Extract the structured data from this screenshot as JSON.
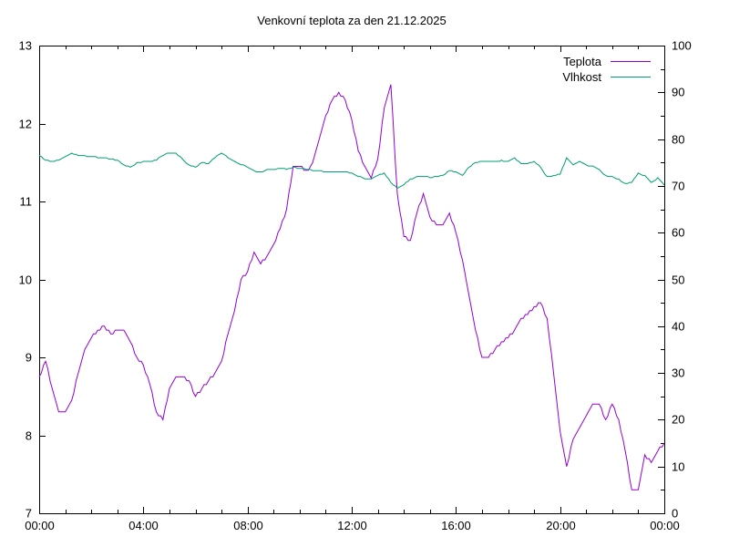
{
  "title": "Venkovní teplota za den 21.12.2025",
  "legend": {
    "position": "top-right-inside",
    "items": [
      {
        "label": "Teplota",
        "color": "#9400d3"
      },
      {
        "label": "Vlhkost",
        "color": "#009e73"
      }
    ]
  },
  "axes": {
    "x": {
      "tick_labels": [
        "00:00",
        "04:00",
        "08:00",
        "12:00",
        "16:00",
        "20:00",
        "00:00"
      ],
      "range_hours": [
        0,
        24
      ],
      "major_step_hours": 4,
      "minor_step_hours": 1
    },
    "y_left": {
      "tick_labels": [
        "7",
        "8",
        "9",
        "10",
        "11",
        "12",
        "13"
      ],
      "range": [
        7,
        13
      ],
      "major_step": 1
    },
    "y_right": {
      "tick_labels": [
        "0",
        "10",
        "20",
        "30",
        "40",
        "50",
        "60",
        "70",
        "80",
        "90",
        "100"
      ],
      "range": [
        0,
        100
      ],
      "major_step": 10,
      "minor_step": 5
    }
  },
  "chart_data": {
    "type": "line",
    "title": "Venkovní teplota za den 21.12.2025",
    "x_unit": "hours",
    "x_start": 0,
    "x_step": 0.25,
    "grid": false,
    "series": [
      {
        "name": "Teplota",
        "axis": "left",
        "color": "#9400d3",
        "ylim": [
          7,
          13
        ],
        "values": [
          8.75,
          8.95,
          8.6,
          8.3,
          8.3,
          8.45,
          8.8,
          9.1,
          9.25,
          9.35,
          9.4,
          9.3,
          9.35,
          9.35,
          9.2,
          9.0,
          8.9,
          8.65,
          8.3,
          8.2,
          8.6,
          8.75,
          8.75,
          8.7,
          8.5,
          8.6,
          8.7,
          8.8,
          8.95,
          9.3,
          9.6,
          10.0,
          10.1,
          10.35,
          10.2,
          10.3,
          10.45,
          10.65,
          10.9,
          11.45,
          11.45,
          11.38,
          11.5,
          11.8,
          12.1,
          12.3,
          12.4,
          12.3,
          12.05,
          11.65,
          11.45,
          11.3,
          11.55,
          12.2,
          12.5,
          11.1,
          10.55,
          10.5,
          10.85,
          11.1,
          10.8,
          10.7,
          10.7,
          10.85,
          10.6,
          10.25,
          9.8,
          9.35,
          9.0,
          9.0,
          9.1,
          9.2,
          9.25,
          9.35,
          9.5,
          9.55,
          9.65,
          9.7,
          9.5,
          8.8,
          8.05,
          7.6,
          7.95,
          8.1,
          8.25,
          8.4,
          8.4,
          8.2,
          8.4,
          8.2,
          7.8,
          7.3,
          7.3,
          7.75,
          7.65,
          7.8,
          7.9
        ]
      },
      {
        "name": "Vlhkost",
        "axis": "right",
        "color": "#009e73",
        "ylim": [
          0,
          100
        ],
        "values": [
          76.5,
          75.5,
          75.3,
          75.5,
          76.2,
          76.9,
          76.5,
          76.4,
          76.2,
          76.1,
          76.0,
          75.8,
          75.5,
          74.5,
          74.0,
          74.9,
          75.2,
          75.2,
          75.6,
          76.6,
          77.1,
          77.0,
          75.8,
          74.4,
          74.0,
          75.0,
          74.8,
          76.1,
          77.0,
          76.1,
          75.3,
          74.6,
          74.0,
          73.2,
          72.9,
          73.4,
          73.5,
          73.8,
          73.6,
          74.0,
          73.8,
          73.6,
          73.3,
          73.2,
          73.0,
          73.1,
          72.9,
          73.0,
          72.7,
          72.1,
          71.5,
          71.4,
          72.3,
          72.7,
          70.8,
          69.5,
          70.3,
          71.4,
          72.0,
          72.1,
          71.8,
          72.0,
          72.2,
          73.3,
          72.9,
          72.2,
          74.0,
          75.0,
          75.2,
          75.3,
          75.2,
          75.4,
          75.2,
          75.9,
          74.8,
          74.7,
          75.3,
          74.0,
          71.9,
          72.2,
          72.6,
          76.0,
          74.5,
          75.2,
          74.4,
          74.2,
          73.4,
          72.2,
          71.9,
          71.4,
          70.5,
          70.8,
          72.7,
          72.2,
          70.7,
          71.7,
          70.2
        ]
      }
    ]
  }
}
